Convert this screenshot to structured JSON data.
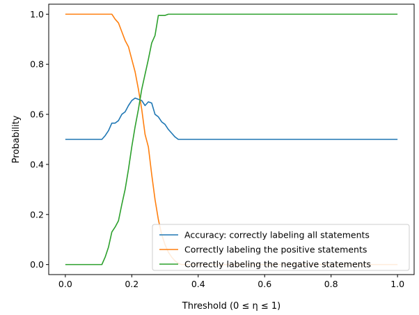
{
  "chart_data": {
    "type": "line",
    "xlabel": "Threshold (0 ≤ η ≤ 1)",
    "ylabel": "Probability",
    "xlim": [
      -0.05,
      1.05
    ],
    "ylim": [
      -0.04,
      1.04
    ],
    "xticks": [
      {
        "value": 0.0,
        "label": "0.0"
      },
      {
        "value": 0.2,
        "label": "0.2"
      },
      {
        "value": 0.4,
        "label": "0.4"
      },
      {
        "value": 0.6,
        "label": "0.6"
      },
      {
        "value": 0.8,
        "label": "0.8"
      },
      {
        "value": 1.0,
        "label": "1.0"
      }
    ],
    "yticks": [
      {
        "value": 0.0,
        "label": "0.0"
      },
      {
        "value": 0.2,
        "label": "0.2"
      },
      {
        "value": 0.4,
        "label": "0.4"
      },
      {
        "value": 0.6,
        "label": "0.6"
      },
      {
        "value": 0.8,
        "label": "0.8"
      },
      {
        "value": 1.0,
        "label": "1.0"
      }
    ],
    "grid": false,
    "legend_position": "bottom-right",
    "series": [
      {
        "name": "Accuracy: correctly labeling all statements",
        "color": "#1f77b4",
        "x": [
          0.0,
          0.11,
          0.12,
          0.13,
          0.14,
          0.15,
          0.16,
          0.17,
          0.18,
          0.19,
          0.2,
          0.21,
          0.22,
          0.23,
          0.24,
          0.25,
          0.26,
          0.27,
          0.28,
          0.29,
          0.3,
          0.31,
          0.32,
          0.33,
          0.34,
          0.35,
          1.0
        ],
        "y": [
          0.5,
          0.5,
          0.515,
          0.535,
          0.565,
          0.565,
          0.575,
          0.6,
          0.61,
          0.635,
          0.655,
          0.665,
          0.66,
          0.655,
          0.635,
          0.65,
          0.645,
          0.6,
          0.59,
          0.57,
          0.56,
          0.54,
          0.525,
          0.51,
          0.5,
          0.5,
          0.5
        ]
      },
      {
        "name": "Correctly labeling the positive statements",
        "color": "#ff7f0e",
        "x": [
          0.0,
          0.14,
          0.15,
          0.16,
          0.17,
          0.18,
          0.19,
          0.2,
          0.21,
          0.22,
          0.23,
          0.24,
          0.25,
          0.26,
          0.27,
          0.28,
          0.29,
          0.3,
          0.31,
          0.32,
          0.33,
          0.34,
          0.35,
          1.0
        ],
        "y": [
          1.0,
          1.0,
          0.98,
          0.965,
          0.93,
          0.895,
          0.87,
          0.82,
          0.77,
          0.7,
          0.62,
          0.52,
          0.47,
          0.36,
          0.26,
          0.18,
          0.12,
          0.08,
          0.05,
          0.03,
          0.015,
          0.005,
          0.0,
          0.0
        ]
      },
      {
        "name": "Correctly labeling the negative statements",
        "color": "#2ca02c",
        "x": [
          0.0,
          0.11,
          0.12,
          0.13,
          0.14,
          0.15,
          0.16,
          0.17,
          0.18,
          0.19,
          0.2,
          0.21,
          0.22,
          0.23,
          0.24,
          0.25,
          0.26,
          0.27,
          0.28,
          0.29,
          0.3,
          0.31,
          0.32,
          1.0
        ],
        "y": [
          0.0,
          0.0,
          0.03,
          0.07,
          0.13,
          0.15,
          0.175,
          0.24,
          0.3,
          0.38,
          0.47,
          0.55,
          0.62,
          0.7,
          0.76,
          0.82,
          0.885,
          0.915,
          0.995,
          0.995,
          0.995,
          1.0,
          1.0,
          1.0
        ]
      }
    ]
  }
}
